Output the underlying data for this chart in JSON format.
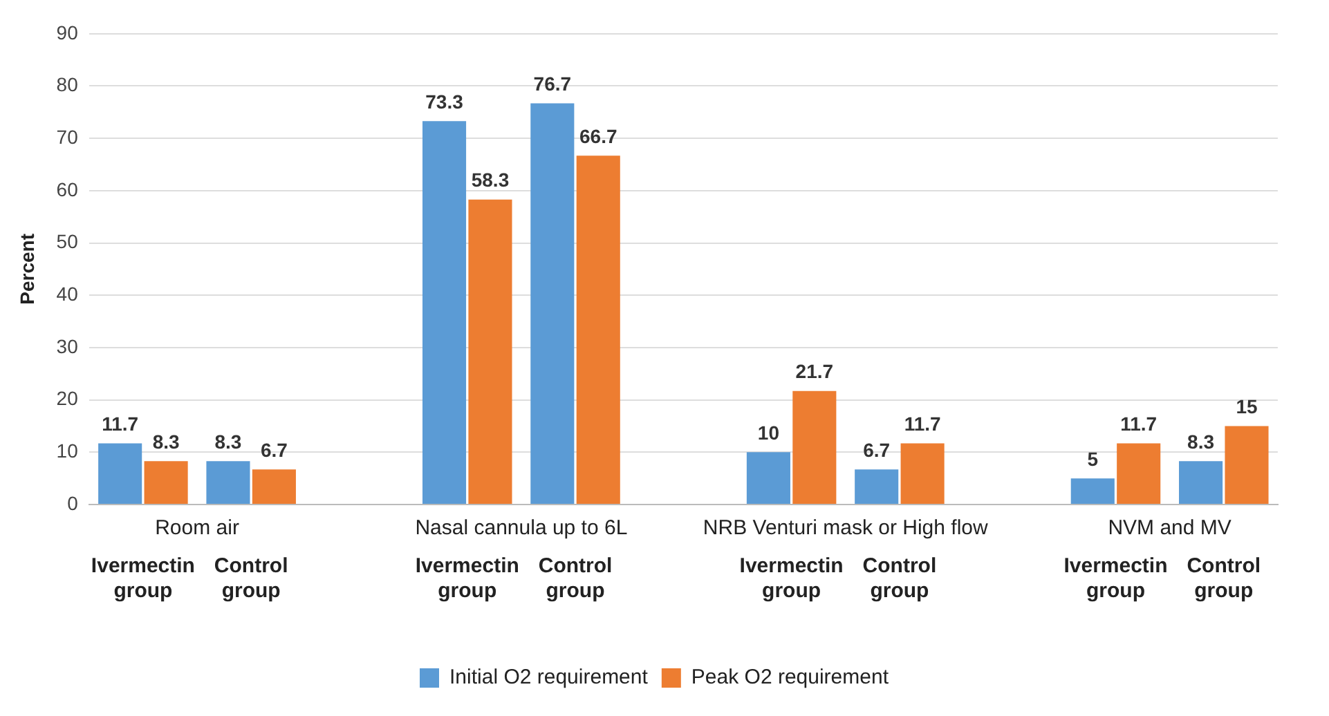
{
  "chart_data": {
    "type": "bar",
    "ylabel": "Percent",
    "categories": [
      "Ivermectin group",
      "Control group",
      null,
      "Ivermectin group",
      "Control group",
      null,
      "Ivermectin group",
      "Control group",
      null,
      "Ivermectin group",
      "Control group"
    ],
    "series": [
      {
        "name": "Initial O2 requirement",
        "color": "#5b9bd5",
        "values": [
          11.7,
          8.3,
          null,
          73.3,
          76.7,
          null,
          10,
          6.7,
          null,
          5,
          8.3
        ]
      },
      {
        "name": "Peak O2 requirement",
        "color": "#ed7d31",
        "values": [
          8.3,
          6.7,
          null,
          58.3,
          66.7,
          null,
          21.7,
          11.7,
          null,
          11.7,
          15
        ]
      }
    ],
    "annotations": [
      "Room air",
      "Nasal cannula up to 6L",
      "NRB Venturi mask or High flow",
      "NVM and MV"
    ],
    "ylim": [
      0,
      90
    ],
    "yticks": [
      0,
      10,
      20,
      30,
      40,
      50,
      60,
      70,
      80,
      90
    ],
    "grid": "y",
    "legend": "bottom",
    "data_labels": true
  }
}
